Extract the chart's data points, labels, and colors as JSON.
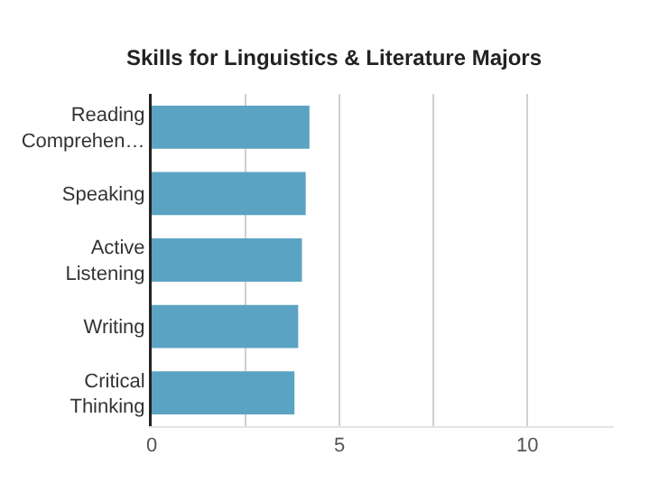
{
  "chart_data": {
    "type": "bar",
    "orientation": "horizontal",
    "title": "Skills for Linguistics & Literature Majors",
    "categories": [
      "Reading Comprehen…",
      "Speaking",
      "Active Listening",
      "Writing",
      "Critical Thinking"
    ],
    "values": [
      4.2,
      4.1,
      4.0,
      3.9,
      3.8
    ],
    "color": "#5ba3c2",
    "xlim": [
      0,
      12.3
    ],
    "xticks": [
      0,
      {
        "value": 2.5,
        "label": null
      },
      5,
      {
        "value": 7.5,
        "label": null
      },
      10
    ],
    "grid": "x"
  }
}
